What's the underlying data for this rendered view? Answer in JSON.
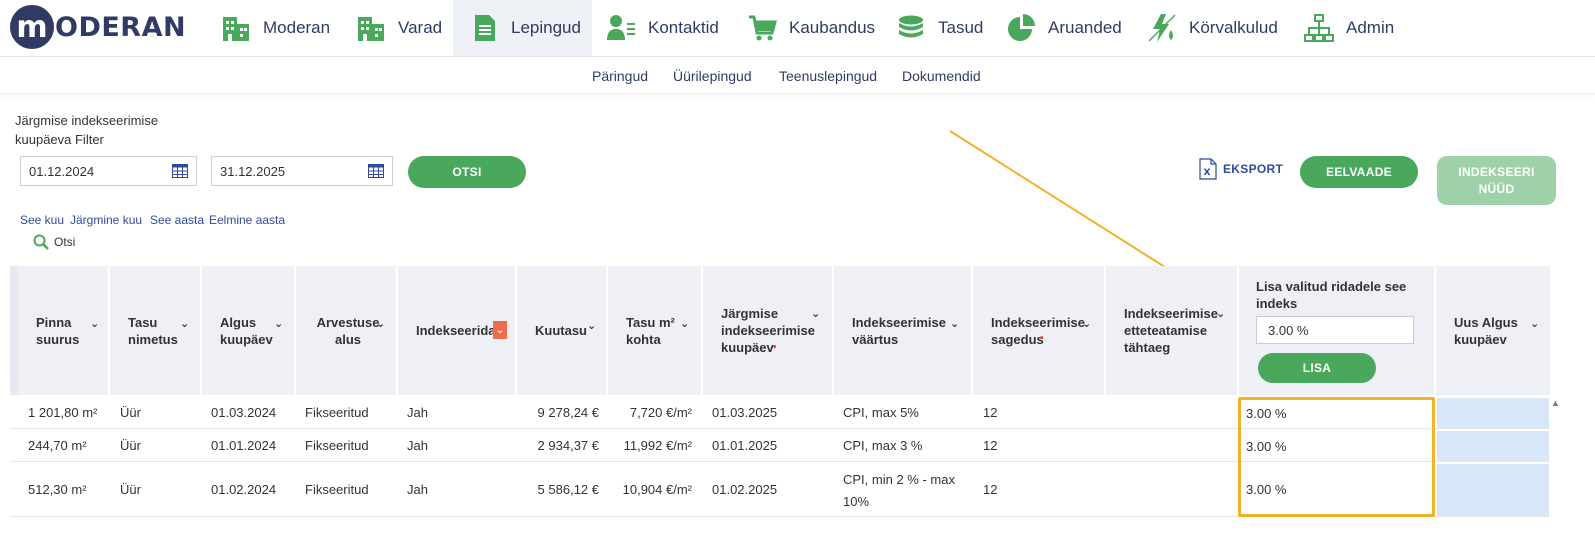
{
  "brand": {
    "logo_letter": "m",
    "logo_text": "ODERAN"
  },
  "colors": {
    "brand": "#2f3b64",
    "green": "#4aa85c",
    "highlight": "#f2b12b",
    "link": "#2f4aa0"
  },
  "nav": [
    {
      "label": "Moderan",
      "icon": "buildings-icon"
    },
    {
      "label": "Varad",
      "icon": "buildings-icon"
    },
    {
      "label": "Lepingud",
      "icon": "document-icon",
      "active": true
    },
    {
      "label": "Kontaktid",
      "icon": "contact-icon"
    },
    {
      "label": "Kaubandus",
      "icon": "cart-icon"
    },
    {
      "label": "Tasud",
      "icon": "coins-icon"
    },
    {
      "label": "Aruanded",
      "icon": "pie-chart-icon"
    },
    {
      "label": "Körvalkulud",
      "icon": "utilities-icon"
    },
    {
      "label": "Admin",
      "icon": "org-chart-icon"
    }
  ],
  "subnav": [
    "Päringud",
    "Üürilepingud",
    "Teenuslepingud",
    "Dokumendid"
  ],
  "filter": {
    "label": "Järgmise indekseerimise kuupäeva Filter",
    "date_from": "01.12.2024",
    "date_to": "31.12.2025",
    "search_button": "OTSI",
    "quick_links": [
      "See kuu",
      "Järgmine kuu",
      "See aasta",
      "Eelmine aasta"
    ],
    "search_link": "Otsi"
  },
  "actions": {
    "export": "EKSPORT",
    "preview": "EELVAADE",
    "index_now": "INDEKSEERI NÜÜD"
  },
  "table": {
    "headers": {
      "area": "Pinna suurus",
      "fee_name": "Tasu nimetus",
      "start_date": "Algus kuupäev",
      "billing_basis": "Arvestuse alus",
      "indexable": "Indekseerida",
      "monthly_fee": "Kuutasu",
      "fee_per_m2": "Tasu m² kohta",
      "next_index_date": "Järgmise indekseerimise kuupäev",
      "index_value": "Indekseerimise väärtus",
      "index_frequency": "Indekseerimise sagedus",
      "index_notice": "Indekseerimise etteteatamise tähtaeg",
      "add_index_label": "Lisa valitud ridadele see indeks",
      "add_index_value": "3.00 %",
      "add_button": "LISA",
      "new_start": "Uus Algus kuupäev"
    },
    "rows": [
      {
        "area": "1 201,80 m²",
        "fee_name": "Üür",
        "start_date": "01.03.2024",
        "billing_basis": "Fikseeritud",
        "indexable": "Jah",
        "monthly_fee": "9 278,24 €",
        "fee_per_m2": "7,720 €/m²",
        "next_index_date": "01.03.2025",
        "index_value": "CPI, max 5%",
        "index_frequency": "12",
        "new_index": "3.00 %"
      },
      {
        "area": "244,70 m²",
        "fee_name": "Üür",
        "start_date": "01.01.2024",
        "billing_basis": "Fikseeritud",
        "indexable": "Jah",
        "monthly_fee": "2 934,37 €",
        "fee_per_m2": "11,992 €/m²",
        "next_index_date": "01.01.2025",
        "index_value": "CPI, max 3 %",
        "index_frequency": "12",
        "new_index": "3.00 %"
      },
      {
        "area": "512,30 m²",
        "fee_name": "Üür",
        "start_date": "01.02.2024",
        "billing_basis": "Fikseeritud",
        "indexable": "Jah",
        "monthly_fee": "5 586,12 €",
        "fee_per_m2": "10,904 €/m²",
        "next_index_date": "01.02.2025",
        "index_value": "CPI, min 2 % - max 10%",
        "index_frequency": "12",
        "new_index": "3.00 %"
      }
    ]
  }
}
